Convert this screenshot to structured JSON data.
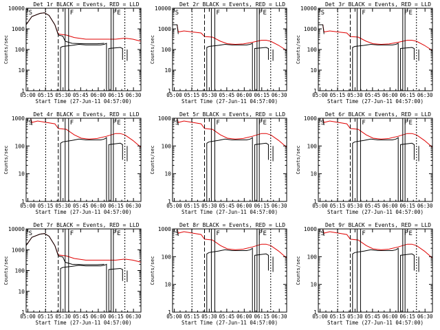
{
  "colors": {
    "events": "#000000",
    "lld": "#e00000",
    "axis": "#000000",
    "background": "#ffffff"
  },
  "common": {
    "xlabel": "Start Time (27-Jun-11 04:57:00)",
    "ylabel": "Counts/sec",
    "x_ticks": [
      "05:00",
      "05:15",
      "05:30",
      "05:45",
      "06:00",
      "06:15",
      "06:30"
    ],
    "y_ticks": [
      "1",
      "10",
      "100",
      "1000",
      "10000"
    ],
    "markers": [
      "S",
      "F",
      "F",
      "E"
    ]
  },
  "chart_data": [
    {
      "type": "line",
      "title": "Det 1r BLACK = Events, RED = LLD",
      "variant": "A",
      "x_ticks": [
        "05:00",
        "05:15",
        "05:30",
        "05:45",
        "06:00",
        "06:15",
        "06:30"
      ],
      "ylim": [
        1,
        10000
      ]
    },
    {
      "type": "line",
      "title": "Det 2r BLACK = Events, RED = LLD",
      "variant": "B",
      "x_ticks": [
        "05:00",
        "05:15",
        "05:30",
        "05:45",
        "06:00",
        "06:15",
        "06:30"
      ],
      "ylim": [
        1,
        10000
      ]
    },
    {
      "type": "line",
      "title": "Det 3r BLACK = Events, RED = LLD",
      "variant": "B",
      "x_ticks": [
        "05:00",
        "05:15",
        "05:30",
        "05:45",
        "06:00",
        "06:15",
        "06:30"
      ],
      "ylim": [
        1,
        10000
      ]
    },
    {
      "type": "line",
      "title": "Det 4r BLACK = Events, RED = LLD",
      "variant": "B",
      "x_ticks": [
        "05:00",
        "05:15",
        "05:30",
        "05:45",
        "06:00",
        "06:15",
        "06:30"
      ],
      "ylim": [
        1,
        1000
      ]
    },
    {
      "type": "line",
      "title": "Det 5r BLACK = Events, RED = LLD",
      "variant": "B",
      "x_ticks": [
        "05:00",
        "05:15",
        "05:30",
        "05:45",
        "06:00",
        "06:15",
        "06:30"
      ],
      "ylim": [
        1,
        1000
      ]
    },
    {
      "type": "line",
      "title": "Det 6r BLACK = Events, RED = LLD",
      "variant": "B",
      "x_ticks": [
        "05:00",
        "05:15",
        "05:30",
        "05:45",
        "06:00",
        "06:15",
        "06:30"
      ],
      "ylim": [
        1,
        1000
      ]
    },
    {
      "type": "line",
      "title": "Det 7r BLACK = Events, RED = LLD",
      "variant": "A",
      "x_ticks": [
        "05:00",
        "05:15",
        "05:30",
        "05:45",
        "06:00",
        "06:15",
        "06:30"
      ],
      "ylim": [
        1,
        10000
      ]
    },
    {
      "type": "line",
      "title": "Det 8r BLACK = Events, RED = LLD",
      "variant": "B",
      "x_ticks": [
        "05:00",
        "05:15",
        "05:30",
        "05:45",
        "06:00",
        "06:15",
        "06:30"
      ],
      "ylim": [
        1,
        1000
      ]
    },
    {
      "type": "line",
      "title": "Det 9r BLACK = Events, RED = LLD",
      "variant": "B",
      "x_ticks": [
        "05:00",
        "05:15",
        "05:30",
        "05:45",
        "06:00",
        "06:15",
        "06:30"
      ],
      "ylim": [
        1,
        1000
      ]
    }
  ]
}
